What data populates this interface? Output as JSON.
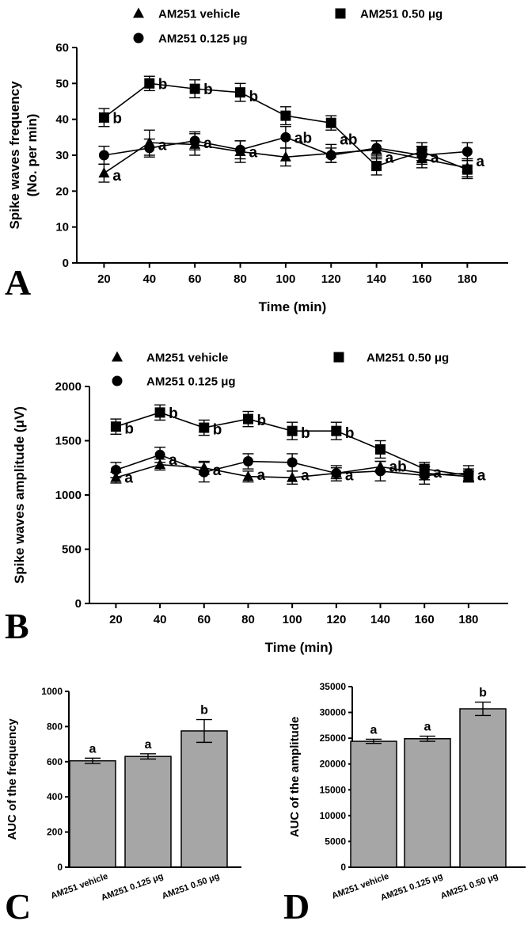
{
  "chart_data": [
    {
      "panel": "A",
      "type": "line",
      "ylabel_line1": "Spike waves frequency",
      "ylabel_line2": "(No. per min)",
      "xlabel": "Time (min)",
      "x": [
        20,
        40,
        60,
        80,
        100,
        120,
        140,
        160,
        180
      ],
      "ylim": [
        0,
        60
      ],
      "yticks": [
        0,
        10,
        20,
        30,
        40,
        50,
        60
      ],
      "xticks": [
        20,
        40,
        60,
        80,
        100,
        120,
        140,
        160,
        180
      ],
      "series": [
        {
          "name": "AM251 vehicle",
          "marker": "triangle",
          "values": [
            25,
            33.5,
            33,
            31,
            29.5,
            30.5,
            31.5,
            29,
            26.5
          ],
          "errors": [
            2.5,
            3.5,
            3,
            3,
            2.5,
            2.5,
            2.5,
            2.5,
            2.5
          ]
        },
        {
          "name": "AM251 0.125 μg",
          "marker": "circle",
          "values": [
            30,
            32,
            34,
            31.5,
            35,
            30,
            32,
            30,
            31
          ],
          "errors": [
            2.5,
            2.5,
            2.5,
            2.5,
            3,
            2,
            2,
            2.5,
            2.5
          ]
        },
        {
          "name": "AM251 0.50 μg",
          "marker": "square",
          "values": [
            40.5,
            50,
            48.5,
            47.5,
            41,
            39,
            27,
            31,
            26
          ],
          "errors": [
            2.5,
            2,
            2.5,
            2.5,
            2.5,
            2,
            2.5,
            2.5,
            2.5
          ]
        }
      ],
      "annotations": [
        {
          "x": 20,
          "y": 40.5,
          "text": "b"
        },
        {
          "x": 40,
          "y": 50,
          "text": "b"
        },
        {
          "x": 60,
          "y": 48.5,
          "text": "b"
        },
        {
          "x": 80,
          "y": 46.5,
          "text": "b"
        },
        {
          "x": 20,
          "y": 24.5,
          "text": "a"
        },
        {
          "x": 40,
          "y": 33,
          "text": "a"
        },
        {
          "x": 60,
          "y": 33.5,
          "text": "a"
        },
        {
          "x": 80,
          "y": 31,
          "text": "a"
        },
        {
          "x": 100,
          "y": 35,
          "text": "ab"
        },
        {
          "x": 120,
          "y": 34.5,
          "text": "ab"
        },
        {
          "x": 140,
          "y": 29.5,
          "text": "a"
        },
        {
          "x": 160,
          "y": 29.5,
          "text": "a"
        },
        {
          "x": 180,
          "y": 28.5,
          "text": "a"
        }
      ]
    },
    {
      "panel": "B",
      "type": "line",
      "ylabel": "Spike waves amplitude (μV)",
      "xlabel": "Time (min)",
      "x": [
        20,
        40,
        60,
        80,
        100,
        120,
        140,
        160,
        180
      ],
      "ylim": [
        0,
        2000
      ],
      "yticks": [
        0,
        500,
        1000,
        1500,
        2000
      ],
      "xticks": [
        20,
        40,
        60,
        80,
        100,
        120,
        140,
        160,
        180
      ],
      "series": [
        {
          "name": "AM251 vehicle",
          "marker": "triangle",
          "values": [
            1160,
            1280,
            1250,
            1170,
            1160,
            1200,
            1260,
            1200,
            1170
          ],
          "errors": [
            50,
            50,
            60,
            50,
            60,
            50,
            50,
            60,
            50
          ]
        },
        {
          "name": "AM251 0.125 μg",
          "marker": "circle",
          "values": [
            1230,
            1370,
            1210,
            1310,
            1300,
            1200,
            1220,
            1180,
            1200
          ],
          "errors": [
            70,
            70,
            90,
            70,
            80,
            70,
            90,
            80,
            70
          ]
        },
        {
          "name": "AM251 0.50 μg",
          "marker": "square",
          "values": [
            1630,
            1760,
            1620,
            1700,
            1590,
            1590,
            1420,
            1240,
            1180
          ],
          "errors": [
            70,
            70,
            70,
            70,
            80,
            80,
            80,
            60,
            60
          ]
        }
      ],
      "annotations": [
        {
          "x": 20,
          "y": 1615,
          "text": "b"
        },
        {
          "x": 40,
          "y": 1760,
          "text": "b"
        },
        {
          "x": 60,
          "y": 1610,
          "text": "b"
        },
        {
          "x": 80,
          "y": 1695,
          "text": "b"
        },
        {
          "x": 100,
          "y": 1575,
          "text": "b"
        },
        {
          "x": 120,
          "y": 1575,
          "text": "b"
        },
        {
          "x": 20,
          "y": 1165,
          "text": "a"
        },
        {
          "x": 40,
          "y": 1330,
          "text": "a"
        },
        {
          "x": 60,
          "y": 1235,
          "text": "a"
        },
        {
          "x": 80,
          "y": 1190,
          "text": "a"
        },
        {
          "x": 100,
          "y": 1185,
          "text": "a"
        },
        {
          "x": 120,
          "y": 1185,
          "text": "a"
        },
        {
          "x": 140,
          "y": 1265,
          "text": "ab"
        },
        {
          "x": 160,
          "y": 1210,
          "text": "a"
        },
        {
          "x": 180,
          "y": 1185,
          "text": "a"
        }
      ]
    },
    {
      "panel": "C",
      "type": "bar",
      "ylabel": "AUC of the frequency",
      "categories": [
        "AM251 vehicle",
        "AM251 0.125 μg",
        "AM251 0.50 μg"
      ],
      "values": [
        605,
        630,
        775
      ],
      "errors": [
        15,
        15,
        65
      ],
      "sig": [
        "a",
        "a",
        "b"
      ],
      "ylim": [
        0,
        1000
      ],
      "yticks": [
        0,
        200,
        400,
        600,
        800,
        1000
      ]
    },
    {
      "panel": "D",
      "type": "bar",
      "ylabel": "AUC of the amplitude",
      "categories": [
        "AM251 vehicle",
        "AM251 0.125 μg",
        "AM251 0.50 μg"
      ],
      "values": [
        24400,
        24900,
        30700
      ],
      "errors": [
        400,
        500,
        1300
      ],
      "sig": [
        "a",
        "a",
        "b"
      ],
      "ylim": [
        0,
        35000
      ],
      "yticks": [
        0,
        5000,
        10000,
        15000,
        20000,
        25000,
        30000,
        35000
      ]
    }
  ],
  "colors": {
    "line": "#000000",
    "bar_fill": "#a6a6a6",
    "axis": "#000000"
  }
}
